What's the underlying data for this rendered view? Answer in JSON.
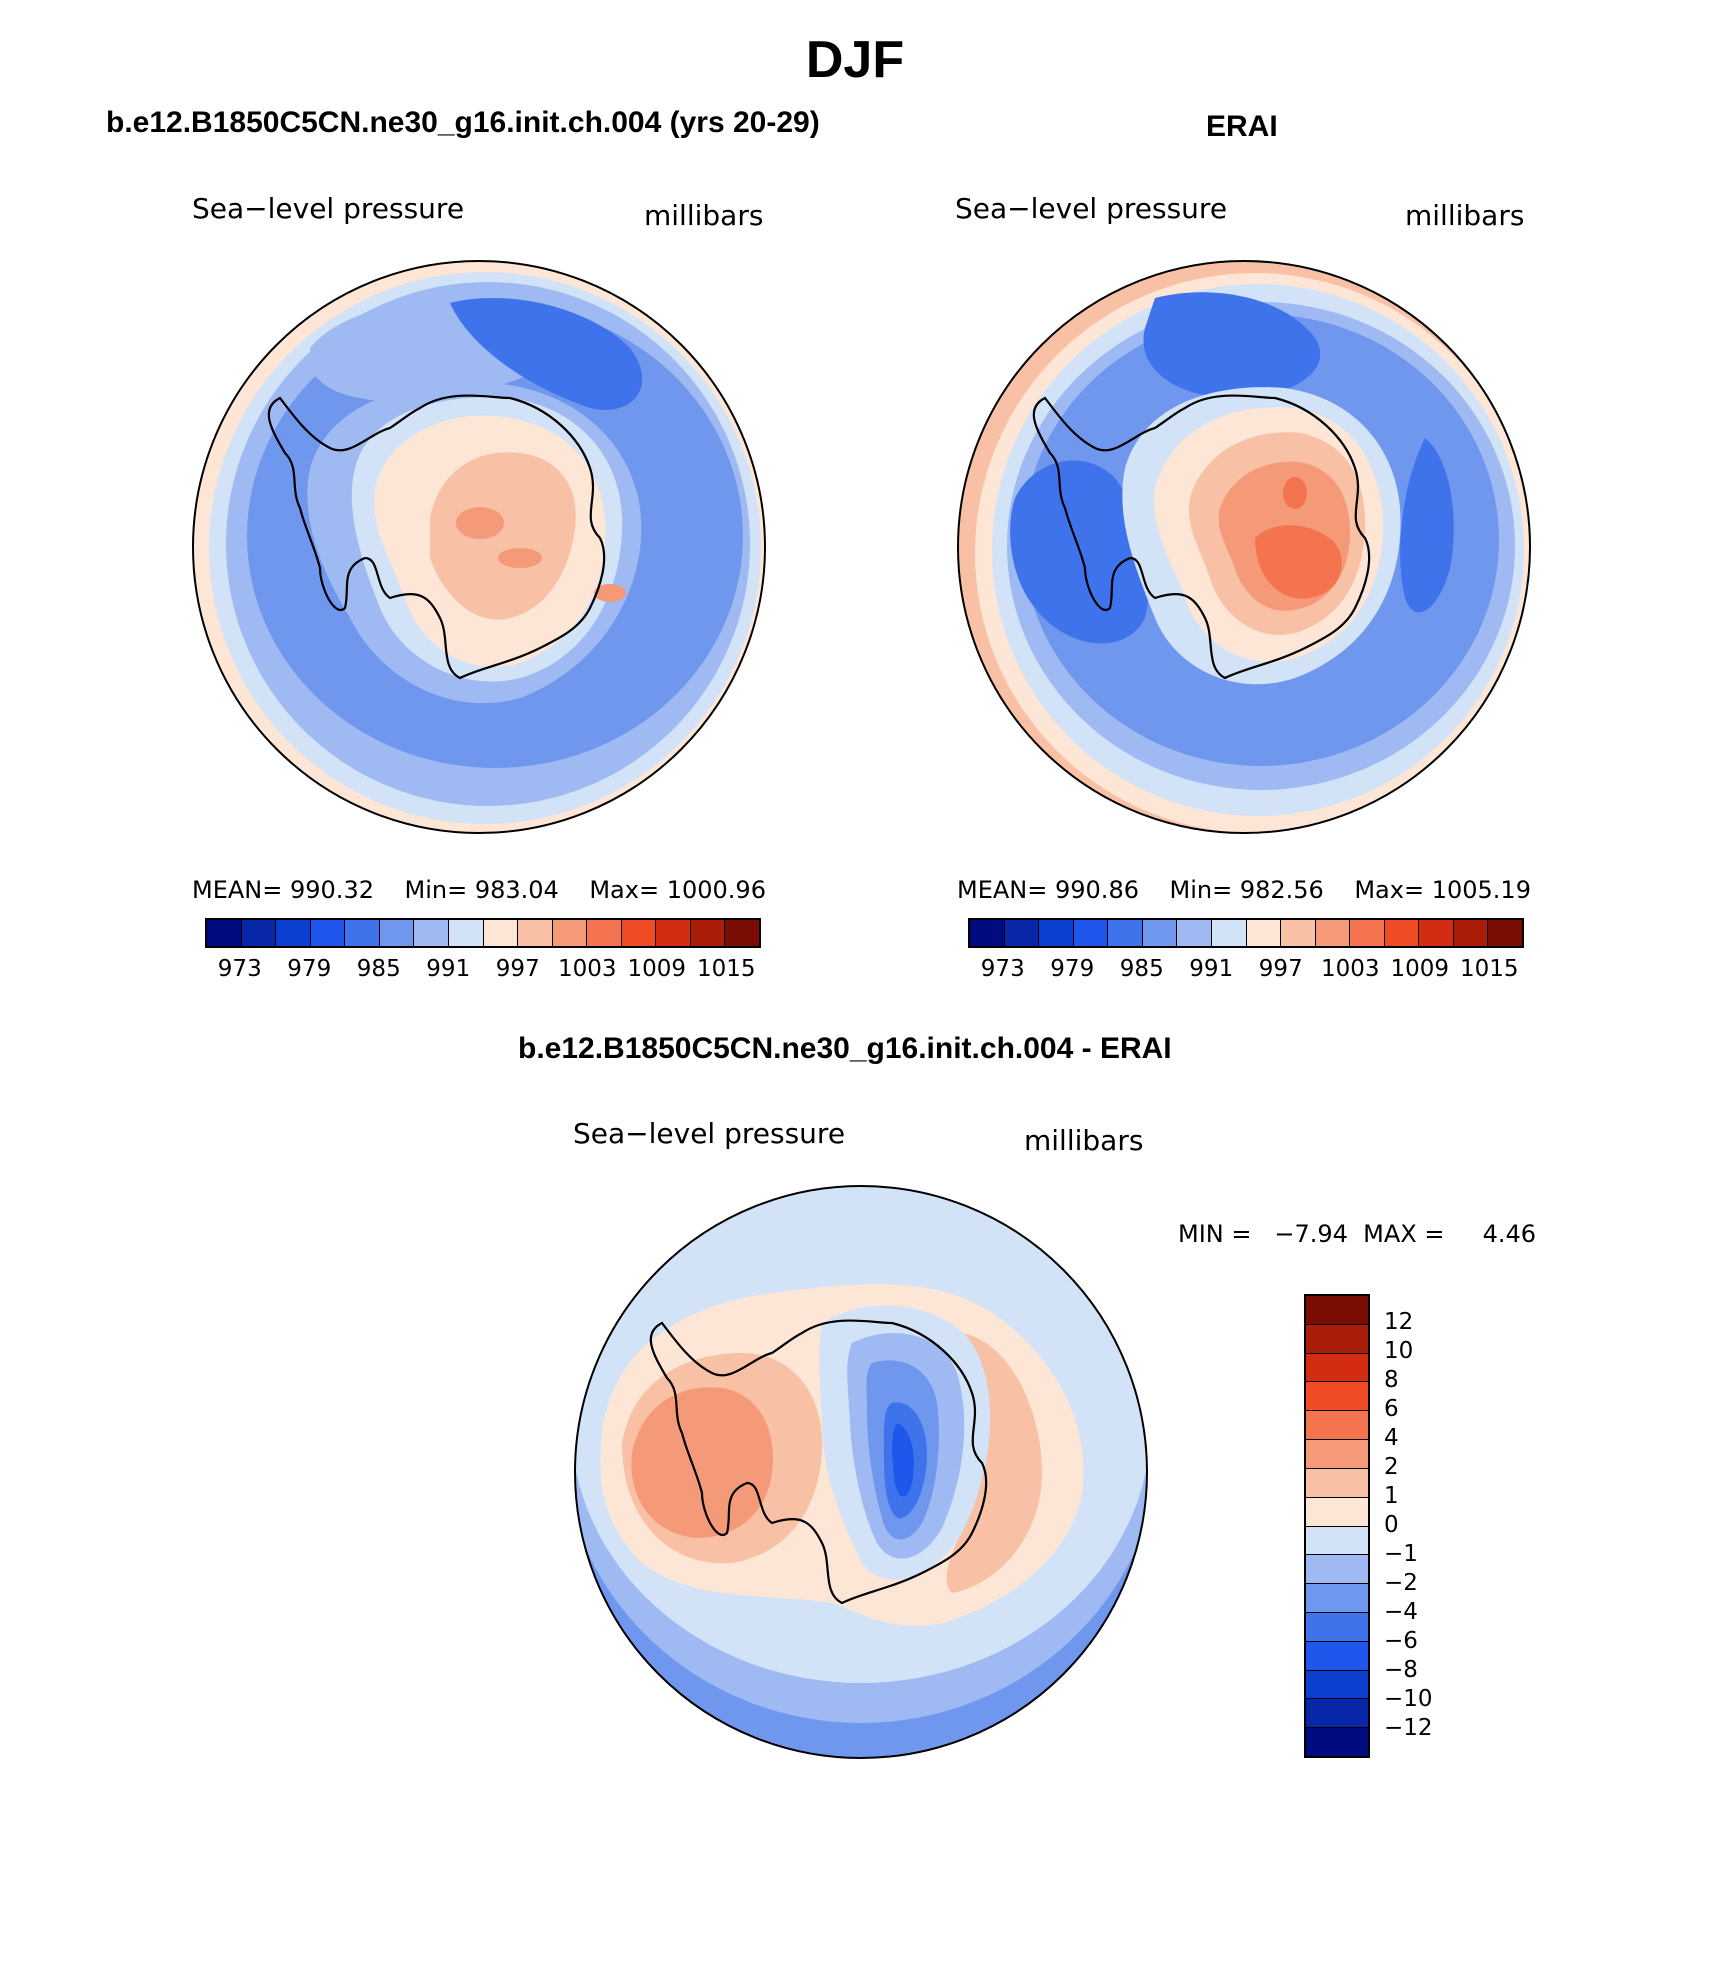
{
  "figure": {
    "title": "DJF"
  },
  "panels": [
    {
      "title": "b.e12.B1850C5CN.ne30_g16.init.ch.004 (yrs 20-29)",
      "left_label": "Sea−level pressure",
      "right_label": "millibars",
      "mean_label": "MEAN=",
      "mean": "990.32",
      "min_label": "Min=",
      "min": "983.04",
      "max_label": "Max=",
      "max": "1000.96"
    },
    {
      "title": "ERAI",
      "left_label": "Sea−level pressure",
      "right_label": "millibars",
      "mean_label": "MEAN=",
      "mean": "990.86",
      "min_label": "Min=",
      "min": "982.56",
      "max_label": "Max=",
      "max": "1005.19"
    },
    {
      "title": "b.e12.B1850C5CN.ne30_g16.init.ch.004 - ERAI",
      "left_label": "Sea−level pressure",
      "right_label": "millibars",
      "minmax_text": "MIN =   −7.94  MAX =     4.46"
    }
  ],
  "colorbar_abs": {
    "colors": [
      "#000b80",
      "#0727a8",
      "#0b3fd0",
      "#1f56ec",
      "#3f73ec",
      "#6f97ee",
      "#9fb9f2",
      "#d2e3f7",
      "#fde6d6",
      "#f8c0a4",
      "#f59a78",
      "#f3744f",
      "#ef4b24",
      "#d42c10",
      "#aa1e09",
      "#7a0c04"
    ],
    "tick_labels": [
      "973",
      "979",
      "985",
      "991",
      "997",
      "1003",
      "1009",
      "1015"
    ]
  },
  "colorbar_diff": {
    "colors": [
      "#000b80",
      "#0727a8",
      "#0b3fd0",
      "#1f56ec",
      "#3f73ec",
      "#6f97ee",
      "#9fb9f2",
      "#d2e3f7",
      "#fde6d6",
      "#f8c0a4",
      "#f59a78",
      "#f3744f",
      "#ef4b24",
      "#d42c10",
      "#aa1e09",
      "#7a0c04"
    ],
    "tick_labels": [
      "12",
      "10",
      "8",
      "6",
      "4",
      "2",
      "1",
      "0",
      "−1",
      "−2",
      "−4",
      "−6",
      "−8",
      "−10",
      "−12"
    ]
  }
}
